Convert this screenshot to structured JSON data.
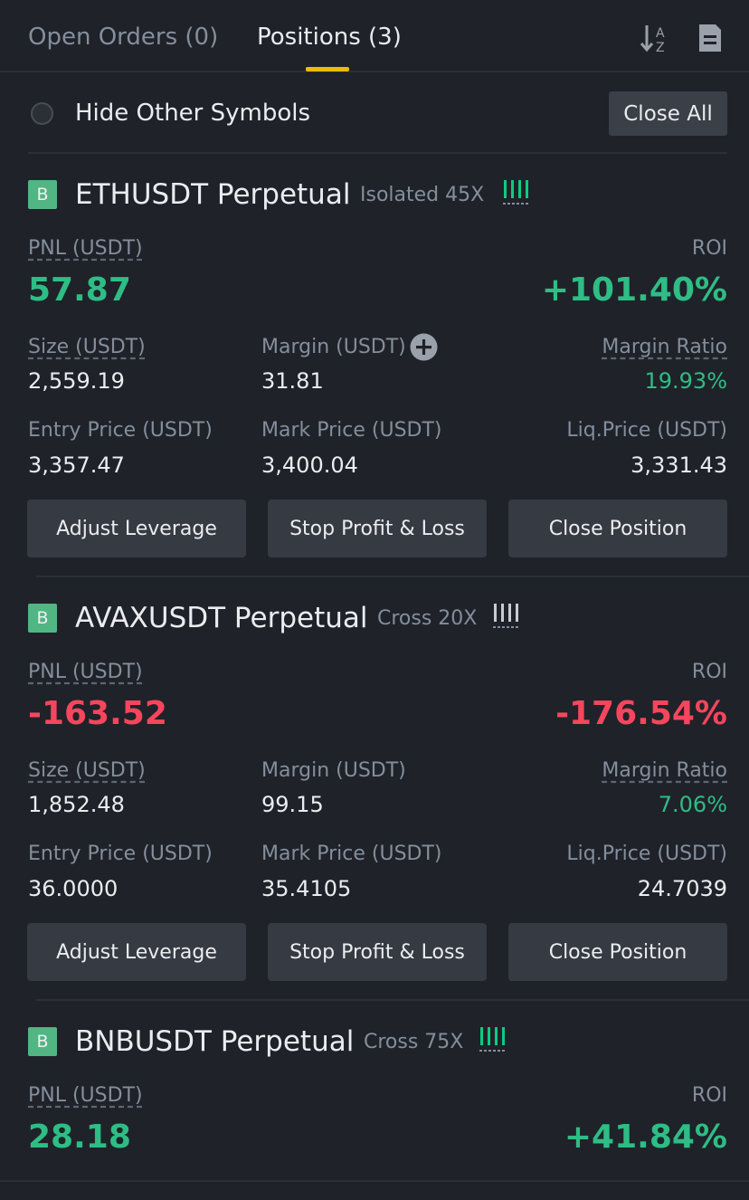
{
  "tabs": {
    "open_orders": "Open Orders (0)",
    "positions": "Positions (3)"
  },
  "icons": {
    "sort": "sort-az-icon",
    "doc": "document-icon",
    "plus": "plus-circle-icon",
    "bars": "signal-bars-icon"
  },
  "filter": {
    "hide_label": "Hide Other Symbols",
    "close_all": "Close All"
  },
  "labels": {
    "pnl": "PNL (USDT)",
    "roi": "ROI",
    "size": "Size (USDT)",
    "margin": "Margin (USDT)",
    "margin_ratio": "Margin Ratio",
    "entry": "Entry Price (USDT)",
    "mark": "Mark Price (USDT)",
    "liq": "Liq.Price (USDT)"
  },
  "buttons": {
    "adjust": "Adjust Leverage",
    "stop": "Stop Profit & Loss",
    "close": "Close Position"
  },
  "colors": {
    "positive": "#0ecb81",
    "negative": "#f6465d",
    "accent": "#f0b90b"
  },
  "positions": [
    {
      "side": "B",
      "symbol": "ETHUSDT Perpetual",
      "mode": "Isolated 45X",
      "pnl": "57.87",
      "roi": "+101.40%",
      "size": "2,559.19",
      "margin": "31.81",
      "margin_ratio": "19.93%",
      "entry": "3,357.47",
      "mark": "3,400.04",
      "liq": "3,331.43"
    },
    {
      "side": "B",
      "symbol": "AVAXUSDT Perpetual",
      "mode": "Cross 20X",
      "pnl": "-163.52",
      "roi": "-176.54%",
      "size": "1,852.48",
      "margin": "99.15",
      "margin_ratio": "7.06%",
      "entry": "36.0000",
      "mark": "35.4105",
      "liq": "24.7039"
    },
    {
      "side": "B",
      "symbol": "BNBUSDT Perpetual",
      "mode": "Cross 75X",
      "pnl": "28.18",
      "roi": "+41.84%"
    }
  ]
}
